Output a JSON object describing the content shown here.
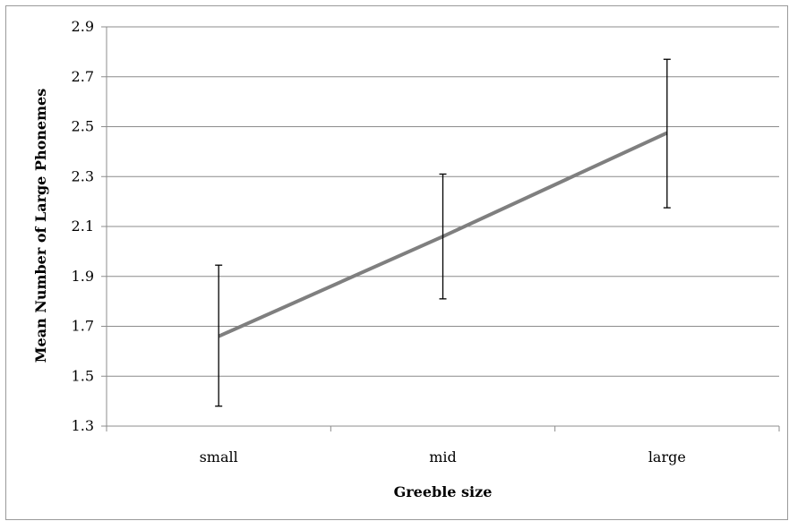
{
  "chart_data": {
    "type": "line",
    "title": "",
    "xlabel": "Greeble size",
    "ylabel": "Mean Number of Large Phonemes",
    "categories": [
      "small",
      "mid",
      "large"
    ],
    "series": [
      {
        "values": [
          1.66,
          2.06,
          2.475
        ],
        "error_low": [
          1.38,
          1.81,
          2.175
        ],
        "error_high": [
          1.945,
          2.31,
          2.77
        ],
        "color": "#7f7f7f"
      }
    ],
    "ylim": [
      1.3,
      2.9
    ],
    "yticks": [
      "1.3",
      "1.5",
      "1.7",
      "1.9",
      "2.1",
      "2.3",
      "2.5",
      "2.7",
      "2.9"
    ],
    "grid": true,
    "legend": "none"
  }
}
